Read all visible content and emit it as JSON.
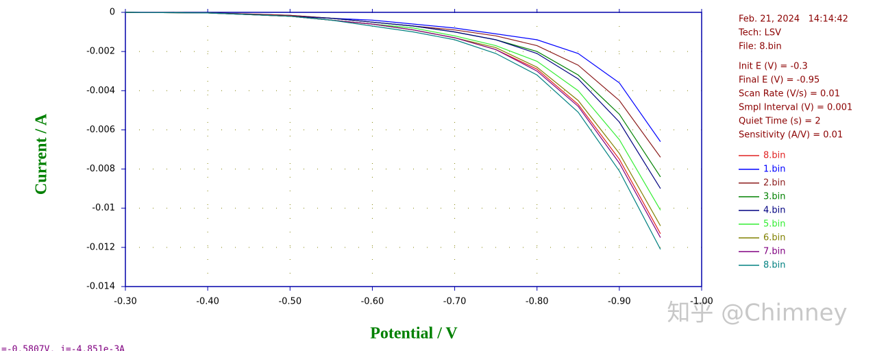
{
  "chart_data": {
    "type": "line",
    "x_label": "Potential / V",
    "y_label": "Current / A",
    "x": [
      -0.3,
      -0.4,
      -0.5,
      -0.55,
      -0.6,
      -0.65,
      -0.7,
      -0.75,
      -0.8,
      -0.85,
      -0.9,
      -0.95
    ],
    "series": [
      {
        "name": "8.bin",
        "color": "#e02020",
        "values": [
          0,
          -3e-05,
          -0.0002,
          -0.0004,
          -0.0006,
          -0.0009,
          -0.0013,
          -0.0019,
          -0.0029,
          -0.0047,
          -0.0075,
          -0.0113
        ]
      },
      {
        "name": "1.bin",
        "color": "#0000ff",
        "values": [
          0,
          -2e-05,
          -0.00015,
          -0.0003,
          -0.0004,
          -0.0006,
          -0.0008,
          -0.0011,
          -0.0014,
          -0.0021,
          -0.0036,
          -0.0066
        ]
      },
      {
        "name": "2.bin",
        "color": "#8b1a1a",
        "values": [
          0,
          -2e-05,
          -0.00015,
          -0.0003,
          -0.0005,
          -0.0007,
          -0.0009,
          -0.0012,
          -0.0017,
          -0.0027,
          -0.0045,
          -0.0074
        ]
      },
      {
        "name": "3.bin",
        "color": "#008000",
        "values": [
          0,
          -2e-05,
          -0.0002,
          -0.0003,
          -0.0005,
          -0.0007,
          -0.001,
          -0.0014,
          -0.002,
          -0.0032,
          -0.0052,
          -0.0084
        ]
      },
      {
        "name": "4.bin",
        "color": "#000080",
        "values": [
          0,
          -2e-05,
          -0.0002,
          -0.0003,
          -0.0005,
          -0.0007,
          -0.001,
          -0.0014,
          -0.0021,
          -0.0034,
          -0.0056,
          -0.009
        ]
      },
      {
        "name": "5.bin",
        "color": "#33ee33",
        "values": [
          0,
          -3e-05,
          -0.0002,
          -0.0004,
          -0.0006,
          -0.0008,
          -0.0012,
          -0.0017,
          -0.0025,
          -0.004,
          -0.0065,
          -0.0101
        ]
      },
      {
        "name": "6.bin",
        "color": "#808000",
        "values": [
          0,
          -3e-05,
          -0.0002,
          -0.0004,
          -0.0006,
          -0.0009,
          -0.0013,
          -0.0018,
          -0.0028,
          -0.0045,
          -0.0072,
          -0.0109
        ]
      },
      {
        "name": "7.bin",
        "color": "#800080",
        "values": [
          0,
          -3e-05,
          -0.0002,
          -0.0004,
          -0.0006,
          -0.0009,
          -0.0013,
          -0.0019,
          -0.003,
          -0.0048,
          -0.0077,
          -0.0115
        ]
      },
      {
        "name": "8.bin",
        "color": "#008080",
        "values": [
          0,
          -3e-05,
          -0.0002,
          -0.0004,
          -0.0007,
          -0.001,
          -0.0014,
          -0.0021,
          -0.0032,
          -0.0051,
          -0.0081,
          -0.0121
        ]
      }
    ],
    "xlim": [
      -0.3,
      -1.0
    ],
    "xticks": [
      {
        "value": -0.3,
        "label": "-0.30"
      },
      {
        "value": -0.4,
        "label": "-0.40"
      },
      {
        "value": -0.5,
        "label": "-0.50"
      },
      {
        "value": -0.6,
        "label": "-0.60"
      },
      {
        "value": -0.7,
        "label": "-0.70"
      },
      {
        "value": -0.8,
        "label": "-0.80"
      },
      {
        "value": -0.9,
        "label": "-0.90"
      },
      {
        "value": -1.0,
        "label": "-1.00"
      }
    ],
    "ylim": [
      -0.014,
      0
    ],
    "yticks": [
      0,
      -0.002,
      -0.004,
      -0.006,
      -0.008,
      -0.01,
      -0.012,
      -0.014
    ],
    "grid": true,
    "header_info": [
      "Feb. 21, 2024   14:14:42",
      "Tech: LSV",
      "File: 8.bin"
    ],
    "parameters": [
      "Init E (V) = -0.3",
      "Final E (V) = -0.95",
      "Scan Rate (V/s) = 0.01",
      "Smpl Interval (V) = 0.001",
      "Quiet Time (s) = 2",
      "Sensitivity (A/V) = 0.01"
    ],
    "status_text": "=-0.5807V, i=-4.851e-3A",
    "watermark": "知乎 @Chimney"
  }
}
